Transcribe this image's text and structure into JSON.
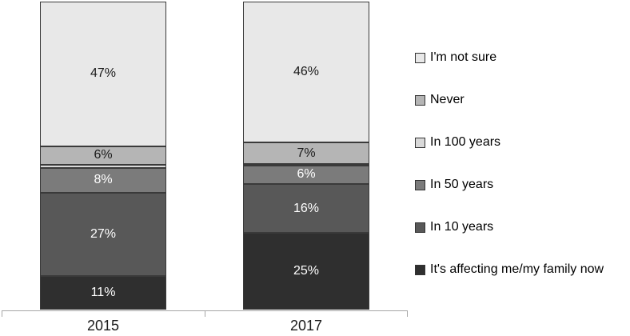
{
  "chart_data": {
    "type": "bar",
    "subtype": "100-percent-stacked-column",
    "title": "",
    "xlabel": "",
    "ylabel": "",
    "grid": false,
    "legend_position": "right",
    "categories": [
      "2015",
      "2017"
    ],
    "series": [
      {
        "name": "I'm not sure",
        "values": [
          47,
          46
        ],
        "labels": [
          "47%",
          "46%"
        ],
        "color": "#e8e8e8",
        "text_color": "#1a1a1a"
      },
      {
        "name": "Never",
        "values": [
          6,
          7
        ],
        "labels": [
          "6%",
          "7%"
        ],
        "color": "#b5b5b5",
        "text_color": "#1a1a1a"
      },
      {
        "name": "In 100 years",
        "values": [
          1,
          0.5
        ],
        "labels": [
          "",
          ""
        ],
        "color": "#d9d9d9",
        "text_color": "#1a1a1a"
      },
      {
        "name": "In 50 years",
        "values": [
          8,
          6
        ],
        "labels": [
          "8%",
          "6%"
        ],
        "color": "#7b7b7b",
        "text_color": "#ffffff"
      },
      {
        "name": "In 10 years",
        "values": [
          27,
          16
        ],
        "labels": [
          "27%",
          "16%"
        ],
        "color": "#585858",
        "text_color": "#ffffff"
      },
      {
        "name": "It's affecting me/my family now",
        "values": [
          11,
          25
        ],
        "labels": [
          "11%",
          "25%"
        ],
        "color": "#2f2f2f",
        "text_color": "#ffffff"
      }
    ],
    "axis_color": "#a6a6a6",
    "segment_border_color": "#3a3a3a"
  }
}
